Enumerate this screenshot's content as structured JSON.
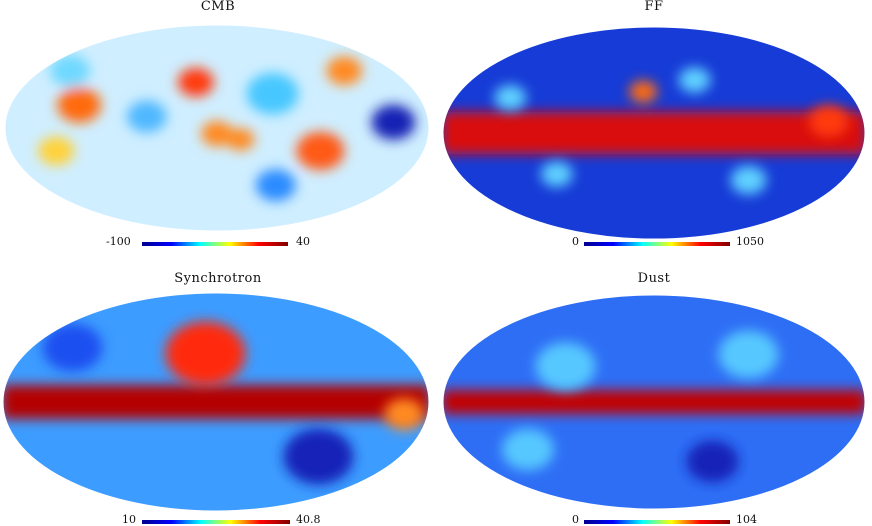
{
  "panels": [
    {
      "id": "cmb",
      "title": "CMB",
      "colorbar": {
        "min_label": "-100",
        "max_label": "40"
      },
      "blobs": [
        {
          "lon": -120,
          "lat": 20,
          "r": 22,
          "color": "#ff6a10"
        },
        {
          "lon": -140,
          "lat": -20,
          "r": 18,
          "color": "#ffd23a"
        },
        {
          "lon": -60,
          "lat": 10,
          "r": 20,
          "color": "#4fb8ff"
        },
        {
          "lon": -20,
          "lat": 40,
          "r": 18,
          "color": "#ff3a10"
        },
        {
          "lon": 0,
          "lat": -5,
          "r": 16,
          "color": "#ff8a22"
        },
        {
          "lon": 20,
          "lat": -10,
          "r": 14,
          "color": "#ff8a22"
        },
        {
          "lon": 50,
          "lat": 30,
          "r": 26,
          "color": "#47c7ff"
        },
        {
          "lon": 90,
          "lat": -20,
          "r": 24,
          "color": "#ff5a15"
        },
        {
          "lon": 150,
          "lat": 5,
          "r": 22,
          "color": "#1420b4"
        },
        {
          "lon": 130,
          "lat": 50,
          "r": 18,
          "color": "#ff8a22"
        },
        {
          "lon": -150,
          "lat": 50,
          "r": 20,
          "color": "#6fd8ff"
        },
        {
          "lon": 60,
          "lat": -50,
          "r": 20,
          "color": "#2a8bff"
        }
      ],
      "base": "#cfeeff"
    },
    {
      "id": "ff",
      "title": "FF",
      "colorbar": {
        "min_label": "0",
        "max_label": "1050"
      },
      "base": "#163bd6",
      "band": {
        "color": "#d90a07",
        "half_width_deg": 18
      },
      "blobs": [
        {
          "lon": -130,
          "lat": 30,
          "r": 16,
          "color": "#5fd0ff"
        },
        {
          "lon": -90,
          "lat": -35,
          "r": 16,
          "color": "#5fd0ff"
        },
        {
          "lon": -10,
          "lat": 35,
          "r": 14,
          "color": "#ff6a10"
        },
        {
          "lon": 40,
          "lat": 45,
          "r": 16,
          "color": "#5fd0ff"
        },
        {
          "lon": 90,
          "lat": -40,
          "r": 18,
          "color": "#5fd0ff"
        },
        {
          "lon": 150,
          "lat": 10,
          "r": 20,
          "color": "#ff3a10"
        }
      ]
    },
    {
      "id": "synchrotron",
      "title": "Synchrotron",
      "colorbar": {
        "min_label": "10",
        "max_label": "40.8"
      },
      "base": "#3d9cff",
      "band": {
        "color": "#b40000",
        "half_width_deg": 14
      },
      "blobs": [
        {
          "lon": -10,
          "lat": 40,
          "r": 40,
          "color": "#ff2a07"
        },
        {
          "lon": 100,
          "lat": -45,
          "r": 35,
          "color": "#1224b8"
        },
        {
          "lon": -140,
          "lat": 45,
          "r": 30,
          "color": "#1d4ff0"
        },
        {
          "lon": 160,
          "lat": -10,
          "r": 20,
          "color": "#ff8a22"
        }
      ]
    },
    {
      "id": "dust",
      "title": "Dust",
      "colorbar": {
        "min_label": "0",
        "max_label": "104"
      },
      "base": "#2e6ef5",
      "band": {
        "color": "#c20000",
        "half_width_deg": 10
      },
      "blobs": [
        {
          "lon": -80,
          "lat": 30,
          "r": 30,
          "color": "#56c8ff"
        },
        {
          "lon": 90,
          "lat": 40,
          "r": 30,
          "color": "#56c8ff"
        },
        {
          "lon": -120,
          "lat": -40,
          "r": 26,
          "color": "#56c8ff"
        },
        {
          "lon": 60,
          "lat": -50,
          "r": 26,
          "color": "#1224b8"
        }
      ]
    }
  ],
  "jet_stops": [
    "#00008f",
    "#0000ff",
    "#00ffff",
    "#ffff00",
    "#ff0000",
    "#800000"
  ]
}
